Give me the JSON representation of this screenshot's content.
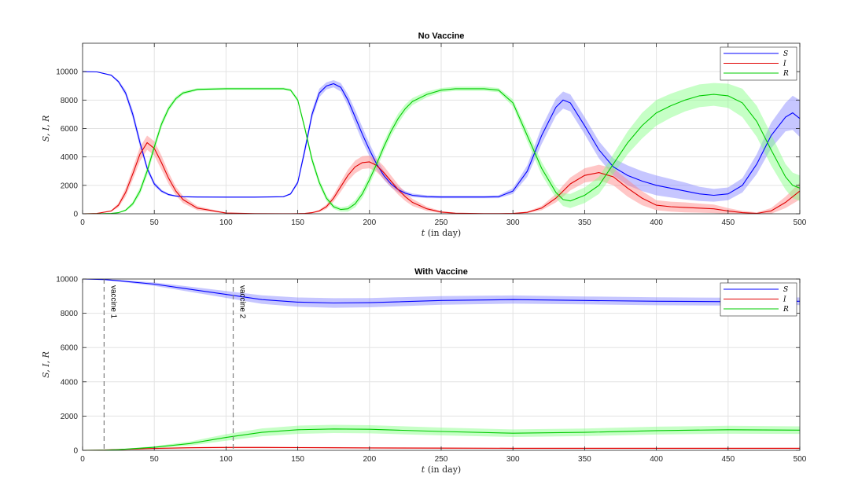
{
  "chart_data": [
    {
      "type": "line",
      "title": "No Vaccine",
      "xlabel_var": "t",
      "xlabel_unit": "(in day)",
      "ylabel": "S, I, R",
      "xlim": [
        0,
        500
      ],
      "ylim": [
        0,
        12000
      ],
      "xticks": [
        0,
        50,
        100,
        150,
        200,
        250,
        300,
        350,
        400,
        450,
        500
      ],
      "yticks": [
        0,
        2000,
        4000,
        6000,
        8000,
        10000
      ],
      "grid": true,
      "legend_position": "top-right",
      "x": [
        0,
        10,
        20,
        25,
        30,
        35,
        40,
        45,
        50,
        55,
        60,
        65,
        70,
        80,
        100,
        120,
        140,
        145,
        150,
        155,
        160,
        165,
        170,
        175,
        180,
        185,
        190,
        195,
        200,
        205,
        210,
        215,
        220,
        225,
        230,
        240,
        250,
        260,
        270,
        280,
        290,
        300,
        310,
        320,
        330,
        335,
        340,
        350,
        360,
        370,
        380,
        390,
        400,
        410,
        420,
        430,
        440,
        450,
        460,
        470,
        480,
        490,
        495,
        500
      ],
      "series": [
        {
          "name": "S",
          "color": "#0000ff",
          "band_color": "#8080ff",
          "values": [
            10000,
            9980,
            9750,
            9300,
            8500,
            7000,
            5000,
            3200,
            2100,
            1600,
            1350,
            1250,
            1200,
            1180,
            1170,
            1170,
            1200,
            1400,
            2200,
            4500,
            7000,
            8500,
            9000,
            9150,
            8900,
            8000,
            6800,
            5600,
            4500,
            3500,
            2700,
            2100,
            1700,
            1450,
            1300,
            1200,
            1180,
            1180,
            1180,
            1180,
            1200,
            1600,
            3000,
            5500,
            7500,
            8000,
            7800,
            6200,
            4500,
            3300,
            2700,
            2300,
            2000,
            1800,
            1600,
            1400,
            1300,
            1400,
            2000,
            3500,
            5500,
            6800,
            7100,
            6700
          ],
          "band_lower": [
            10000,
            9960,
            9700,
            9200,
            8300,
            6700,
            4700,
            3000,
            1950,
            1500,
            1280,
            1200,
            1160,
            1140,
            1130,
            1130,
            1160,
            1330,
            2050,
            4200,
            6700,
            8200,
            8750,
            8900,
            8600,
            7600,
            6300,
            5100,
            4050,
            3100,
            2400,
            1850,
            1500,
            1300,
            1180,
            1100,
            1090,
            1090,
            1090,
            1090,
            1100,
            1400,
            2600,
            4900,
            6900,
            7400,
            7200,
            5600,
            3900,
            2700,
            2000,
            1600,
            1300,
            1150,
            1000,
            900,
            850,
            950,
            1500,
            2800,
            4600,
            5800,
            5900,
            5400
          ],
          "band_upper": [
            10000,
            10000,
            9800,
            9400,
            8700,
            7300,
            5300,
            3400,
            2250,
            1700,
            1420,
            1300,
            1240,
            1220,
            1210,
            1210,
            1240,
            1470,
            2350,
            4800,
            7300,
            8800,
            9250,
            9400,
            9200,
            8400,
            7300,
            6100,
            4950,
            3900,
            3000,
            2350,
            1900,
            1600,
            1420,
            1300,
            1270,
            1270,
            1270,
            1270,
            1300,
            1800,
            3400,
            6100,
            8100,
            8600,
            8400,
            6800,
            5100,
            3900,
            3400,
            3000,
            2700,
            2450,
            2200,
            1900,
            1750,
            1850,
            2500,
            4200,
            6400,
            7800,
            8300,
            8000
          ]
        },
        {
          "name": "I",
          "color": "#e00000",
          "band_color": "#ff8080",
          "values": [
            0,
            20,
            200,
            600,
            1500,
            2800,
            4200,
            5000,
            4600,
            3600,
            2500,
            1600,
            1000,
            400,
            50,
            10,
            5,
            5,
            10,
            30,
            80,
            200,
            500,
            1100,
            1900,
            2700,
            3300,
            3600,
            3650,
            3400,
            2900,
            2300,
            1700,
            1200,
            800,
            350,
            120,
            40,
            20,
            10,
            10,
            20,
            100,
            400,
            1100,
            1600,
            2100,
            2700,
            2900,
            2600,
            1800,
            1100,
            600,
            500,
            450,
            400,
            350,
            200,
            80,
            30,
            200,
            800,
            1200,
            1600
          ],
          "band_lower": [
            0,
            10,
            150,
            450,
            1200,
            2400,
            3700,
            4500,
            4100,
            3100,
            2100,
            1300,
            750,
            250,
            20,
            0,
            0,
            0,
            0,
            10,
            40,
            120,
            350,
            850,
            1550,
            2300,
            2850,
            3150,
            3200,
            2950,
            2450,
            1900,
            1350,
            900,
            550,
            200,
            50,
            10,
            0,
            0,
            0,
            0,
            50,
            250,
            800,
            1200,
            1650,
            2200,
            2350,
            2000,
            1200,
            600,
            250,
            150,
            100,
            80,
            50,
            0,
            0,
            0,
            0,
            400,
            700,
            1000
          ],
          "band_upper": [
            0,
            30,
            250,
            750,
            1800,
            3200,
            4700,
            5500,
            5100,
            4100,
            2900,
            1900,
            1250,
            550,
            80,
            20,
            10,
            10,
            20,
            50,
            120,
            280,
            650,
            1350,
            2250,
            3100,
            3750,
            4050,
            4100,
            3850,
            3350,
            2700,
            2050,
            1500,
            1050,
            500,
            190,
            70,
            40,
            20,
            20,
            40,
            150,
            550,
            1400,
            2000,
            2550,
            3200,
            3450,
            3200,
            2400,
            1600,
            950,
            850,
            800,
            720,
            650,
            400,
            200,
            100,
            400,
            1200,
            1700,
            2200
          ]
        },
        {
          "name": "R",
          "color": "#00cc00",
          "band_color": "#80ff80",
          "values": [
            0,
            0,
            20,
            80,
            250,
            700,
            1600,
            3000,
            4700,
            6300,
            7400,
            8100,
            8500,
            8750,
            8800,
            8800,
            8800,
            8700,
            8000,
            6000,
            3800,
            2200,
            1100,
            500,
            300,
            350,
            700,
            1400,
            2400,
            3500,
            4700,
            5800,
            6700,
            7400,
            7900,
            8400,
            8700,
            8800,
            8800,
            8800,
            8700,
            7800,
            5500,
            3200,
            1500,
            1000,
            900,
            1300,
            2000,
            3500,
            5000,
            6200,
            7100,
            7600,
            8000,
            8300,
            8400,
            8300,
            7800,
            6500,
            4500,
            2600,
            2000,
            1800
          ],
          "band_lower": [
            0,
            0,
            10,
            50,
            180,
            550,
            1350,
            2700,
            4400,
            6050,
            7200,
            7950,
            8380,
            8660,
            8720,
            8720,
            8720,
            8600,
            7850,
            5800,
            3550,
            1950,
            900,
            350,
            150,
            150,
            450,
            1100,
            2050,
            3150,
            4350,
            5450,
            6350,
            7100,
            7650,
            8200,
            8550,
            8650,
            8650,
            8650,
            8550,
            7550,
            5100,
            2750,
            1100,
            550,
            400,
            750,
            1400,
            2800,
            4200,
            5300,
            6200,
            6750,
            7200,
            7500,
            7600,
            7450,
            6800,
            5400,
            3400,
            1700,
            1100,
            900
          ],
          "band_upper": [
            0,
            0,
            30,
            110,
            320,
            850,
            1850,
            3300,
            5000,
            6550,
            7600,
            8250,
            8620,
            8840,
            8880,
            8880,
            8880,
            8800,
            8150,
            6200,
            4050,
            2450,
            1300,
            650,
            450,
            550,
            950,
            1700,
            2750,
            3850,
            5050,
            6150,
            7050,
            7700,
            8150,
            8600,
            8850,
            8950,
            8950,
            8950,
            8850,
            8050,
            5900,
            3650,
            1900,
            1450,
            1400,
            1850,
            2600,
            4200,
            5800,
            7100,
            8000,
            8450,
            8800,
            9100,
            9200,
            9150,
            8800,
            7600,
            5600,
            3500,
            2900,
            2700
          ]
        }
      ]
    },
    {
      "type": "line",
      "title": "With Vaccine",
      "xlabel_var": "t",
      "xlabel_unit": "(in day)",
      "ylabel": "S, I, R",
      "xlim": [
        0,
        500
      ],
      "ylim": [
        0,
        10000
      ],
      "xticks": [
        0,
        50,
        100,
        150,
        200,
        250,
        300,
        350,
        400,
        450,
        500
      ],
      "yticks": [
        0,
        2000,
        4000,
        6000,
        8000,
        10000
      ],
      "grid": true,
      "legend_position": "top-right",
      "annotations": [
        {
          "x": 15,
          "text": "vaccine 1"
        },
        {
          "x": 105,
          "text": "vaccine 2"
        }
      ],
      "x": [
        0,
        15,
        25,
        50,
        75,
        100,
        125,
        150,
        175,
        200,
        250,
        300,
        350,
        400,
        450,
        500
      ],
      "series": [
        {
          "name": "S",
          "color": "#0000ff",
          "band_color": "#8080ff",
          "values": [
            10000,
            9970,
            9900,
            9700,
            9400,
            9100,
            8800,
            8650,
            8600,
            8620,
            8750,
            8800,
            8750,
            8700,
            8680,
            8700
          ],
          "band_lower": [
            10000,
            9950,
            9850,
            9600,
            9250,
            8900,
            8550,
            8380,
            8320,
            8350,
            8500,
            8560,
            8520,
            8470,
            8450,
            8480
          ],
          "band_upper": [
            10000,
            9990,
            9950,
            9800,
            9550,
            9300,
            9050,
            8920,
            8880,
            8890,
            9000,
            9040,
            8980,
            8930,
            8910,
            8920
          ]
        },
        {
          "name": "I",
          "color": "#e00000",
          "band_color": "#ff8080",
          "values": [
            0,
            20,
            50,
            110,
            150,
            170,
            170,
            160,
            150,
            140,
            130,
            120,
            120,
            120,
            120,
            120
          ],
          "band_lower": [
            0,
            10,
            30,
            80,
            110,
            130,
            130,
            120,
            110,
            100,
            90,
            80,
            80,
            80,
            80,
            80
          ],
          "band_upper": [
            0,
            30,
            70,
            140,
            190,
            210,
            210,
            200,
            190,
            180,
            170,
            160,
            160,
            160,
            160,
            160
          ]
        },
        {
          "name": "R",
          "color": "#00cc00",
          "band_color": "#80ff80",
          "values": [
            0,
            10,
            40,
            180,
            400,
            750,
            1050,
            1200,
            1250,
            1230,
            1100,
            1000,
            1050,
            1150,
            1200,
            1180
          ],
          "band_lower": [
            0,
            5,
            20,
            120,
            280,
            560,
            820,
            960,
            1010,
            990,
            870,
            780,
            830,
            920,
            970,
            960
          ],
          "band_upper": [
            0,
            15,
            60,
            240,
            520,
            940,
            1280,
            1440,
            1490,
            1470,
            1330,
            1220,
            1270,
            1380,
            1430,
            1400
          ]
        }
      ]
    }
  ]
}
